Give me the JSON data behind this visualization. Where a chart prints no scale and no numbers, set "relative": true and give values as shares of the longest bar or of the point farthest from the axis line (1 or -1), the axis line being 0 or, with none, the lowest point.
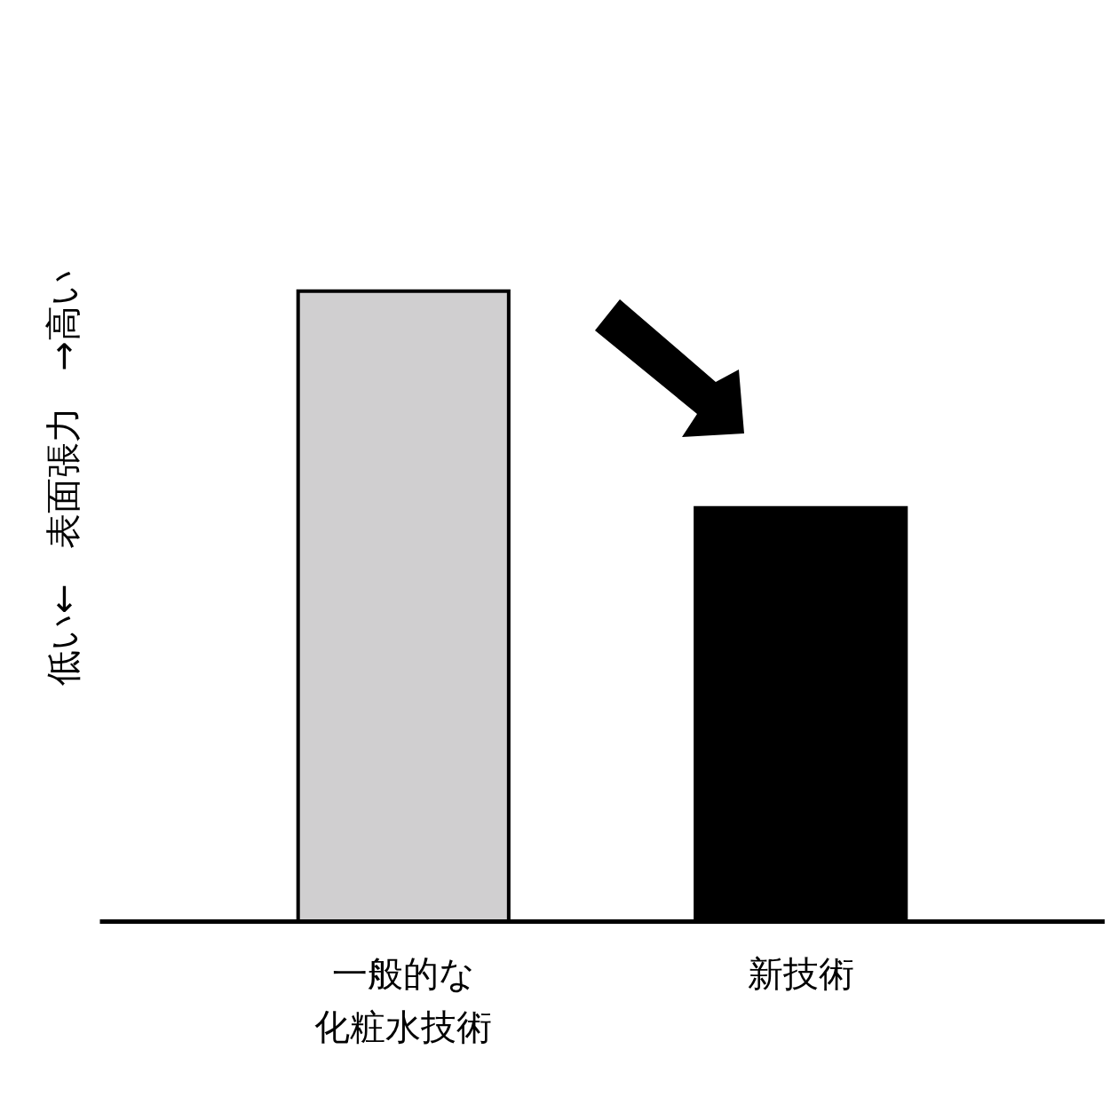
{
  "chart_data": {
    "type": "bar",
    "relative": true,
    "ylabel": "低い←　表面張力　→高い",
    "categories": [
      "一般的な化粧水技術",
      "新技術"
    ],
    "values": [
      1,
      0.656
    ],
    "colors": [
      "#d0cfd0",
      "#000000"
    ]
  }
}
